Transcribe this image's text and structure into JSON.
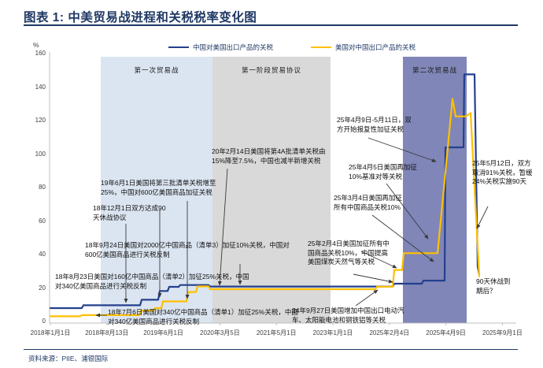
{
  "header": {
    "title": "图表 1: 中美贸易战进程和关税税率变化图"
  },
  "footer": {
    "source": "资料来源：PIIE、浦银国际"
  },
  "chart_data": {
    "type": "line",
    "title": "中美贸易战进程和关税税率变化图",
    "unit_label": "%",
    "ylim": [
      0,
      160
    ],
    "grid": false,
    "legend_position": "top",
    "y_ticks": [
      0,
      20,
      40,
      60,
      80,
      100,
      120,
      140,
      160
    ],
    "x_ticks": [
      "2018年1月1日",
      "2018年8月13日",
      "2019年6月1日",
      "2020年3月5日",
      "2021年5月1日",
      "2023年1月1日",
      "2025年2月4日",
      "2025年4月9日",
      "2025年9月1日"
    ],
    "regions": [
      {
        "label": "第一次贸易战",
        "color": "#dbe5f1"
      },
      {
        "label": "第一阶段贸易协议",
        "color": "#d9d9d9"
      },
      {
        "label": "第二次贸易战",
        "color": "#8086b8"
      }
    ],
    "series": [
      {
        "name": "中国对美国出口产品的关税",
        "color": "#24408e",
        "points": [
          [
            64,
            8
          ],
          [
            104,
            8
          ],
          [
            106,
            9.7
          ],
          [
            178,
            9.7
          ],
          [
            180,
            13
          ],
          [
            201,
            13
          ],
          [
            203,
            18.2
          ],
          [
            213,
            18.2
          ],
          [
            215,
            20.7
          ],
          [
            227,
            20.7
          ],
          [
            229,
            21.8
          ],
          [
            265,
            21.8
          ],
          [
            267,
            20.9
          ],
          [
            499,
            20.9
          ],
          [
            501,
            22.6
          ],
          [
            536,
            22.6
          ],
          [
            538,
            24.4
          ],
          [
            565,
            24.4
          ],
          [
            566,
            104
          ],
          [
            589,
            104
          ],
          [
            590,
            147.6
          ],
          [
            603,
            147.6
          ],
          [
            607,
            32.6
          ],
          [
            609,
            28
          ]
        ]
      },
      {
        "name": "美国对中国出口产品的关税",
        "color": "#ffc000",
        "points": [
          [
            64,
            3.1
          ],
          [
            102,
            3.1
          ],
          [
            104,
            3.8
          ],
          [
            177,
            3.8
          ],
          [
            179,
            6.5
          ],
          [
            195,
            6.5
          ],
          [
            197,
            8
          ],
          [
            205,
            8
          ],
          [
            207,
            12
          ],
          [
            237,
            12
          ],
          [
            239,
            17.6
          ],
          [
            249,
            17.6
          ],
          [
            251,
            21
          ],
          [
            265,
            21
          ],
          [
            267,
            19.3
          ],
          [
            477,
            19.3
          ],
          [
            479,
            20.8
          ],
          [
            499,
            20.8
          ],
          [
            501,
            30.8
          ],
          [
            511,
            30.8
          ],
          [
            513,
            40.8
          ],
          [
            556,
            40.8
          ],
          [
            575,
            133
          ],
          [
            579,
            122.5
          ],
          [
            592,
            122.5
          ],
          [
            598,
            124.5
          ],
          [
            609,
            27
          ]
        ]
      }
    ],
    "annotations": [
      {
        "text": "18年7月6日美国对340亿中国商品（清单1）加征25%关税，中国对340亿美国商品进行关税反制"
      },
      {
        "text": "18年8月23日美国对160亿中国商品（清单2）加征25%关税，中国对340亿美国商品进行关税反制"
      },
      {
        "text": "18年9月24日美国对2000亿中国商品（清单3）加征10%关税，中国对600亿美国商品进行关税反制"
      },
      {
        "text": "18年12月1日双方达成90天休战协议"
      },
      {
        "text": "19年6月1日美国将第三批清单关税增至25%，中国对600亿美国商品加征关税"
      },
      {
        "text": "20年2月14日美国将第4A批清单关税由15%降至7.5%，中国也减半新增关税"
      },
      {
        "text": "24年9月27日美国增加中国出口电动汽车、太阳能电池和钢铁铝等关税"
      },
      {
        "text": "25年2月4日美国加征所有中国商品关税10%，中国提高美国煤炭天然气等关税"
      },
      {
        "text": "25年3月4日美国再加征所有中国商品关税10%"
      },
      {
        "text": "25年4月5日美国再加征10%基准对等关税"
      },
      {
        "text": "25年4月9日-5月11日，双方开始报复性加征关税"
      },
      {
        "text": "25年5月12日，双方取消91%关税，暂缓24%关税实施90天"
      },
      {
        "text": "90天休战到期后？"
      }
    ]
  }
}
